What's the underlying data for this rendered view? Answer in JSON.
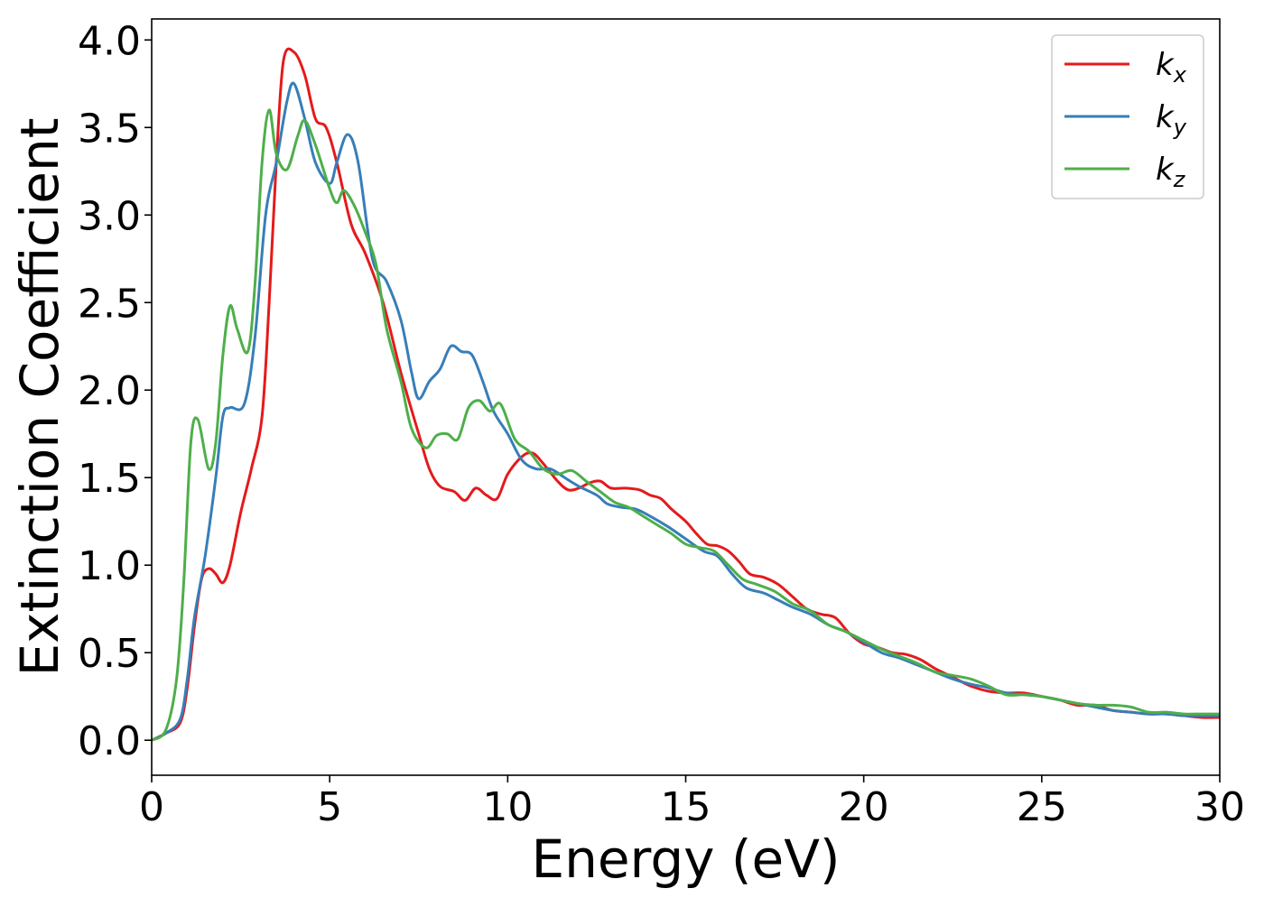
{
  "chart_data": {
    "type": "line",
    "xlabel": "Energy (eV)",
    "ylabel": "Extinction Coefficient",
    "xlim": [
      0,
      30
    ],
    "ylim": [
      -0.2,
      4.12
    ],
    "xticks": [
      0,
      5,
      10,
      15,
      20,
      25,
      30
    ],
    "yticks": [
      0.0,
      0.5,
      1.0,
      1.5,
      2.0,
      2.5,
      3.0,
      3.5,
      4.0
    ],
    "xtick_labels": [
      "0",
      "5",
      "10",
      "15",
      "20",
      "25",
      "30"
    ],
    "ytick_labels": [
      "0.0",
      "0.5",
      "1.0",
      "1.5",
      "2.0",
      "2.5",
      "3.0",
      "3.5",
      "4.0"
    ],
    "grid": false,
    "legend_position": "top-right",
    "series": [
      {
        "name": "k_x",
        "base": "k",
        "sub": "x",
        "color": "#e41a1c",
        "points": [
          [
            0,
            0.0
          ],
          [
            0.4,
            0.04
          ],
          [
            0.8,
            0.1
          ],
          [
            1.0,
            0.3
          ],
          [
            1.2,
            0.65
          ],
          [
            1.4,
            0.92
          ],
          [
            1.6,
            0.98
          ],
          [
            1.8,
            0.95
          ],
          [
            2.0,
            0.9
          ],
          [
            2.2,
            1.0
          ],
          [
            2.5,
            1.3
          ],
          [
            2.8,
            1.55
          ],
          [
            3.1,
            1.85
          ],
          [
            3.3,
            2.5
          ],
          [
            3.5,
            3.3
          ],
          [
            3.7,
            3.88
          ],
          [
            4.0,
            3.93
          ],
          [
            4.3,
            3.8
          ],
          [
            4.6,
            3.55
          ],
          [
            4.9,
            3.5
          ],
          [
            5.2,
            3.3
          ],
          [
            5.6,
            2.95
          ],
          [
            6.0,
            2.78
          ],
          [
            6.5,
            2.5
          ],
          [
            7.0,
            2.1
          ],
          [
            7.5,
            1.75
          ],
          [
            7.8,
            1.55
          ],
          [
            8.1,
            1.45
          ],
          [
            8.5,
            1.42
          ],
          [
            8.8,
            1.37
          ],
          [
            9.1,
            1.44
          ],
          [
            9.4,
            1.4
          ],
          [
            9.7,
            1.38
          ],
          [
            10.0,
            1.52
          ],
          [
            10.4,
            1.62
          ],
          [
            10.7,
            1.64
          ],
          [
            11.0,
            1.58
          ],
          [
            11.4,
            1.48
          ],
          [
            11.7,
            1.43
          ],
          [
            12.0,
            1.44
          ],
          [
            12.3,
            1.47
          ],
          [
            12.6,
            1.48
          ],
          [
            12.9,
            1.44
          ],
          [
            13.3,
            1.44
          ],
          [
            13.7,
            1.43
          ],
          [
            14.0,
            1.4
          ],
          [
            14.3,
            1.38
          ],
          [
            14.6,
            1.32
          ],
          [
            15.0,
            1.25
          ],
          [
            15.3,
            1.18
          ],
          [
            15.6,
            1.12
          ],
          [
            15.9,
            1.11
          ],
          [
            16.2,
            1.08
          ],
          [
            16.5,
            1.02
          ],
          [
            16.8,
            0.95
          ],
          [
            17.2,
            0.93
          ],
          [
            17.6,
            0.89
          ],
          [
            18.0,
            0.82
          ],
          [
            18.4,
            0.75
          ],
          [
            18.8,
            0.72
          ],
          [
            19.2,
            0.7
          ],
          [
            19.6,
            0.61
          ],
          [
            20.0,
            0.55
          ],
          [
            20.4,
            0.53
          ],
          [
            20.8,
            0.5
          ],
          [
            21.2,
            0.49
          ],
          [
            21.6,
            0.46
          ],
          [
            22.0,
            0.41
          ],
          [
            22.5,
            0.36
          ],
          [
            23.0,
            0.31
          ],
          [
            23.5,
            0.28
          ],
          [
            24.0,
            0.27
          ],
          [
            24.5,
            0.27
          ],
          [
            25.0,
            0.25
          ],
          [
            25.5,
            0.23
          ],
          [
            26.0,
            0.2
          ],
          [
            26.5,
            0.2
          ],
          [
            27.0,
            0.17
          ],
          [
            27.5,
            0.16
          ],
          [
            28.0,
            0.15
          ],
          [
            28.5,
            0.15
          ],
          [
            29.0,
            0.14
          ],
          [
            29.5,
            0.13
          ],
          [
            30.0,
            0.13
          ]
        ]
      },
      {
        "name": "k_y",
        "base": "k",
        "sub": "y",
        "color": "#377eb8",
        "points": [
          [
            0,
            0.0
          ],
          [
            0.4,
            0.04
          ],
          [
            0.8,
            0.12
          ],
          [
            1.0,
            0.35
          ],
          [
            1.2,
            0.7
          ],
          [
            1.5,
            1.05
          ],
          [
            1.8,
            1.5
          ],
          [
            2.0,
            1.85
          ],
          [
            2.2,
            1.9
          ],
          [
            2.6,
            1.92
          ],
          [
            2.9,
            2.3
          ],
          [
            3.2,
            3.0
          ],
          [
            3.5,
            3.3
          ],
          [
            3.8,
            3.65
          ],
          [
            4.0,
            3.75
          ],
          [
            4.3,
            3.55
          ],
          [
            4.6,
            3.3
          ],
          [
            5.0,
            3.18
          ],
          [
            5.2,
            3.3
          ],
          [
            5.5,
            3.46
          ],
          [
            5.8,
            3.3
          ],
          [
            6.2,
            2.75
          ],
          [
            6.6,
            2.62
          ],
          [
            7.0,
            2.4
          ],
          [
            7.3,
            2.1
          ],
          [
            7.5,
            1.95
          ],
          [
            7.8,
            2.05
          ],
          [
            8.1,
            2.12
          ],
          [
            8.4,
            2.25
          ],
          [
            8.7,
            2.22
          ],
          [
            9.0,
            2.2
          ],
          [
            9.3,
            2.05
          ],
          [
            9.6,
            1.88
          ],
          [
            10.0,
            1.75
          ],
          [
            10.4,
            1.6
          ],
          [
            10.8,
            1.55
          ],
          [
            11.2,
            1.55
          ],
          [
            11.6,
            1.5
          ],
          [
            12.0,
            1.45
          ],
          [
            12.5,
            1.4
          ],
          [
            12.8,
            1.35
          ],
          [
            13.2,
            1.33
          ],
          [
            13.6,
            1.32
          ],
          [
            14.0,
            1.28
          ],
          [
            14.5,
            1.22
          ],
          [
            15.0,
            1.15
          ],
          [
            15.5,
            1.08
          ],
          [
            15.9,
            1.05
          ],
          [
            16.3,
            0.95
          ],
          [
            16.7,
            0.87
          ],
          [
            17.2,
            0.84
          ],
          [
            17.6,
            0.8
          ],
          [
            18.0,
            0.76
          ],
          [
            18.5,
            0.72
          ],
          [
            19.0,
            0.66
          ],
          [
            19.5,
            0.62
          ],
          [
            20.0,
            0.56
          ],
          [
            20.5,
            0.5
          ],
          [
            21.0,
            0.47
          ],
          [
            21.5,
            0.43
          ],
          [
            22.0,
            0.39
          ],
          [
            22.5,
            0.35
          ],
          [
            23.0,
            0.32
          ],
          [
            23.5,
            0.3
          ],
          [
            24.0,
            0.27
          ],
          [
            24.5,
            0.26
          ],
          [
            25.0,
            0.25
          ],
          [
            25.5,
            0.23
          ],
          [
            26.0,
            0.21
          ],
          [
            26.5,
            0.19
          ],
          [
            27.0,
            0.17
          ],
          [
            27.5,
            0.16
          ],
          [
            28.0,
            0.15
          ],
          [
            28.5,
            0.15
          ],
          [
            29.0,
            0.14
          ],
          [
            29.5,
            0.14
          ],
          [
            30.0,
            0.14
          ]
        ]
      },
      {
        "name": "k_z",
        "base": "k",
        "sub": "z",
        "color": "#4daf4a",
        "points": [
          [
            0,
            0.0
          ],
          [
            0.4,
            0.06
          ],
          [
            0.7,
            0.35
          ],
          [
            0.9,
            0.9
          ],
          [
            1.1,
            1.7
          ],
          [
            1.3,
            1.83
          ],
          [
            1.6,
            1.55
          ],
          [
            1.8,
            1.7
          ],
          [
            2.0,
            2.2
          ],
          [
            2.2,
            2.48
          ],
          [
            2.4,
            2.35
          ],
          [
            2.7,
            2.22
          ],
          [
            2.9,
            2.6
          ],
          [
            3.1,
            3.3
          ],
          [
            3.3,
            3.6
          ],
          [
            3.5,
            3.35
          ],
          [
            3.8,
            3.26
          ],
          [
            4.1,
            3.45
          ],
          [
            4.3,
            3.54
          ],
          [
            4.6,
            3.4
          ],
          [
            5.0,
            3.15
          ],
          [
            5.2,
            3.07
          ],
          [
            5.4,
            3.14
          ],
          [
            5.7,
            3.05
          ],
          [
            6.0,
            2.9
          ],
          [
            6.3,
            2.72
          ],
          [
            6.6,
            2.35
          ],
          [
            7.0,
            2.05
          ],
          [
            7.3,
            1.78
          ],
          [
            7.7,
            1.67
          ],
          [
            8.0,
            1.74
          ],
          [
            8.3,
            1.75
          ],
          [
            8.6,
            1.72
          ],
          [
            8.9,
            1.9
          ],
          [
            9.2,
            1.94
          ],
          [
            9.5,
            1.88
          ],
          [
            9.8,
            1.92
          ],
          [
            10.2,
            1.72
          ],
          [
            10.6,
            1.65
          ],
          [
            11.0,
            1.55
          ],
          [
            11.4,
            1.52
          ],
          [
            11.8,
            1.54
          ],
          [
            12.2,
            1.48
          ],
          [
            12.6,
            1.42
          ],
          [
            13.0,
            1.36
          ],
          [
            13.4,
            1.33
          ],
          [
            13.8,
            1.28
          ],
          [
            14.2,
            1.23
          ],
          [
            14.6,
            1.18
          ],
          [
            15.0,
            1.12
          ],
          [
            15.4,
            1.1
          ],
          [
            15.8,
            1.08
          ],
          [
            16.2,
            1.0
          ],
          [
            16.6,
            0.92
          ],
          [
            17.0,
            0.89
          ],
          [
            17.5,
            0.85
          ],
          [
            18.0,
            0.78
          ],
          [
            18.5,
            0.74
          ],
          [
            19.0,
            0.66
          ],
          [
            19.5,
            0.62
          ],
          [
            20.0,
            0.57
          ],
          [
            20.5,
            0.52
          ],
          [
            21.0,
            0.48
          ],
          [
            21.5,
            0.44
          ],
          [
            22.0,
            0.39
          ],
          [
            22.5,
            0.37
          ],
          [
            23.0,
            0.35
          ],
          [
            23.5,
            0.31
          ],
          [
            24.0,
            0.26
          ],
          [
            24.5,
            0.26
          ],
          [
            25.0,
            0.25
          ],
          [
            25.5,
            0.23
          ],
          [
            26.0,
            0.21
          ],
          [
            26.5,
            0.2
          ],
          [
            27.0,
            0.2
          ],
          [
            27.5,
            0.19
          ],
          [
            28.0,
            0.16
          ],
          [
            28.5,
            0.16
          ],
          [
            29.0,
            0.15
          ],
          [
            29.5,
            0.15
          ],
          [
            30.0,
            0.15
          ]
        ]
      }
    ]
  }
}
